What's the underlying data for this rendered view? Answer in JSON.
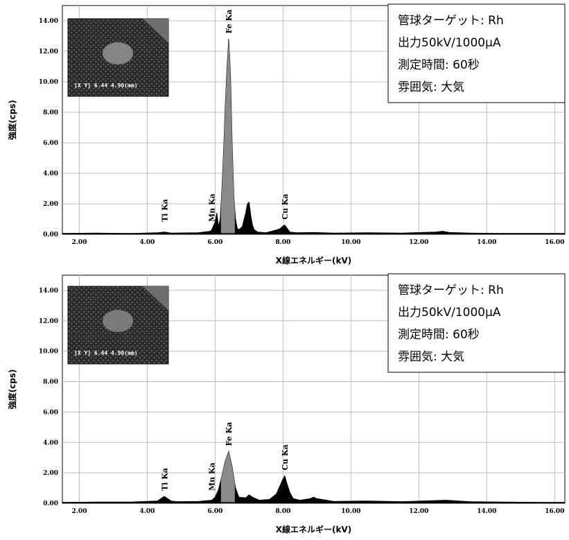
{
  "chart_data": [
    {
      "type": "line",
      "xlabel": "X線エネルギー(kV)",
      "ylabel": "強度(cps)",
      "xlim": [
        1.5,
        16.3
      ],
      "ylim": [
        0,
        15
      ],
      "x_ticks": [
        "2.00",
        "4.00",
        "6.00",
        "8.00",
        "10.00",
        "12.00",
        "14.00",
        "16.00"
      ],
      "y_ticks": [
        "0.00",
        "2.00",
        "4.00",
        "6.00",
        "8.00",
        "10.00",
        "12.00",
        "14.00"
      ],
      "grid": true,
      "peak_labels": [
        {
          "label": "Ti Ka",
          "x": 4.51
        },
        {
          "label": "Mn Ka",
          "x": 5.9
        },
        {
          "label": "Fe Ka",
          "x": 6.4
        },
        {
          "label": "Cu Ka",
          "x": 8.05
        }
      ],
      "series": [
        {
          "x": [
            1.5,
            2.5,
            3.5,
            4.3,
            4.51,
            4.7,
            5.5,
            5.85,
            5.9,
            6.0,
            6.05,
            6.1,
            6.15,
            6.2,
            6.25,
            6.3,
            6.35,
            6.4,
            6.45,
            6.5,
            6.55,
            6.6,
            6.65,
            6.7,
            6.8,
            6.9,
            6.95,
            7.0,
            7.05,
            7.1,
            7.15,
            7.25,
            7.5,
            7.9,
            8.0,
            8.05,
            8.1,
            8.2,
            8.4,
            8.9,
            9.5,
            10.5,
            11.5,
            12.5,
            12.7,
            12.9,
            13.5,
            14.5,
            15.5,
            16.3
          ],
          "y": [
            0.05,
            0.08,
            0.05,
            0.1,
            0.15,
            0.08,
            0.1,
            0.2,
            0.3,
            0.8,
            1.4,
            0.5,
            1.0,
            3.0,
            5.5,
            8.5,
            11.0,
            12.8,
            10.5,
            6.0,
            2.5,
            1.0,
            0.4,
            0.3,
            0.5,
            1.4,
            2.0,
            2.1,
            1.2,
            0.6,
            0.3,
            0.15,
            0.1,
            0.35,
            0.55,
            0.6,
            0.45,
            0.15,
            0.1,
            0.12,
            0.08,
            0.1,
            0.08,
            0.15,
            0.2,
            0.12,
            0.08,
            0.05,
            0.05,
            0.05
          ]
        }
      ],
      "inset_caption": "[X Y] 6.44 4.90(mm)",
      "info_lines": [
        "管球ターゲット: Rh",
        "出力50kV/1000µA",
        "測定時間: 60秒",
        "雰囲気: 大気"
      ]
    },
    {
      "type": "line",
      "xlabel": "X線エネルギー(kV)",
      "ylabel": "強度(cps)",
      "xlim": [
        1.5,
        16.3
      ],
      "ylim": [
        0,
        15
      ],
      "x_ticks": [
        "2.00",
        "4.00",
        "6.00",
        "8.00",
        "10.00",
        "12.00",
        "14.00",
        "16.00"
      ],
      "y_ticks": [
        "0.00",
        "2.00",
        "4.00",
        "6.00",
        "8.00",
        "10.00",
        "12.00",
        "14.00"
      ],
      "grid": true,
      "peak_labels": [
        {
          "label": "Ti Ka",
          "x": 4.51
        },
        {
          "label": "Mn Ka",
          "x": 5.9
        },
        {
          "label": "Fe Ka",
          "x": 6.4
        },
        {
          "label": "Cu Ka",
          "x": 8.05
        }
      ],
      "series": [
        {
          "x": [
            1.5,
            2.5,
            3.5,
            4.3,
            4.4,
            4.5,
            4.6,
            4.7,
            4.9,
            5.5,
            5.9,
            6.0,
            6.1,
            6.2,
            6.3,
            6.4,
            6.5,
            6.6,
            6.7,
            6.9,
            7.0,
            7.1,
            7.3,
            7.6,
            7.8,
            7.9,
            8.0,
            8.05,
            8.1,
            8.2,
            8.3,
            8.5,
            8.8,
            8.9,
            9.0,
            9.5,
            10.5,
            11.5,
            12.5,
            12.8,
            13.5,
            14.5,
            15.5,
            16.3
          ],
          "y": [
            0.05,
            0.08,
            0.08,
            0.15,
            0.3,
            0.45,
            0.3,
            0.15,
            0.1,
            0.12,
            0.2,
            0.4,
            0.9,
            1.8,
            2.8,
            3.4,
            2.4,
            1.0,
            0.4,
            0.35,
            0.55,
            0.4,
            0.2,
            0.25,
            0.6,
            1.1,
            1.6,
            1.8,
            1.4,
            0.7,
            0.3,
            0.2,
            0.3,
            0.4,
            0.3,
            0.12,
            0.15,
            0.1,
            0.18,
            0.2,
            0.1,
            0.08,
            0.06,
            0.05
          ]
        }
      ],
      "inset_caption": "[X Y] 6.44 4.90(mm)",
      "info_lines": [
        "管球ターゲット: Rh",
        "出力50kV/1000µA",
        "測定時間: 60秒",
        "雰囲気: 大気"
      ]
    }
  ],
  "colors": {
    "fe_peak_fill": "#8a8a8a",
    "spectrum_fill": "#000000",
    "grid": "#bdbdbd",
    "inset_bg": "#2f2f2f"
  }
}
